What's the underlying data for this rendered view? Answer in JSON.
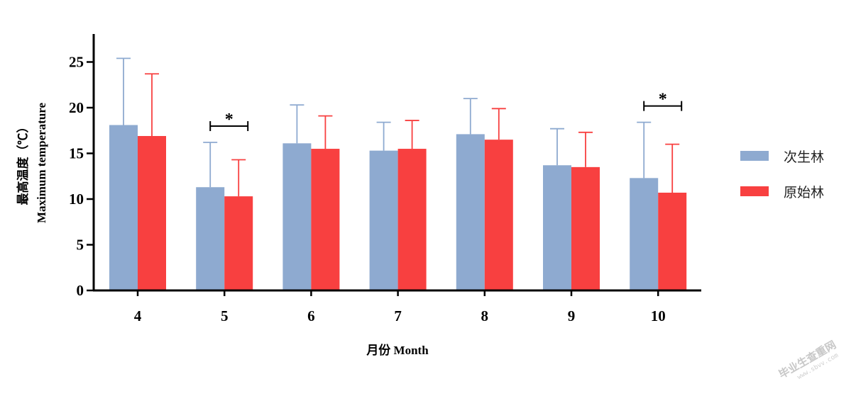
{
  "chart_data": {
    "type": "bar",
    "categories": [
      "4",
      "5",
      "6",
      "7",
      "8",
      "9",
      "10"
    ],
    "series": [
      {
        "name": "次生林",
        "color": "#8eaad0",
        "values": [
          18.1,
          11.3,
          16.1,
          15.3,
          17.1,
          13.7,
          12.3
        ],
        "errors": [
          7.3,
          4.9,
          4.2,
          3.1,
          3.9,
          4.0,
          6.1
        ]
      },
      {
        "name": "原始林",
        "color": "#f84040",
        "values": [
          16.9,
          10.3,
          15.5,
          15.5,
          16.5,
          13.5,
          10.7
        ],
        "errors": [
          6.8,
          4.0,
          3.6,
          3.1,
          3.4,
          3.8,
          5.3
        ]
      }
    ],
    "xlabel": "月份 Month",
    "ylabel_cn": "最高温度（℃）",
    "ylabel_en": "Maximum temperature",
    "ylim": [
      0,
      28
    ],
    "yticks": [
      "0",
      "5",
      "10",
      "15",
      "20",
      "25"
    ],
    "significance": [
      {
        "category": "5",
        "label": "*"
      },
      {
        "category": "10",
        "label": "*"
      }
    ],
    "grid": false,
    "legend_position": "right"
  },
  "watermark": {
    "text": "毕业生查重网",
    "url": "www.sbvv.com"
  }
}
